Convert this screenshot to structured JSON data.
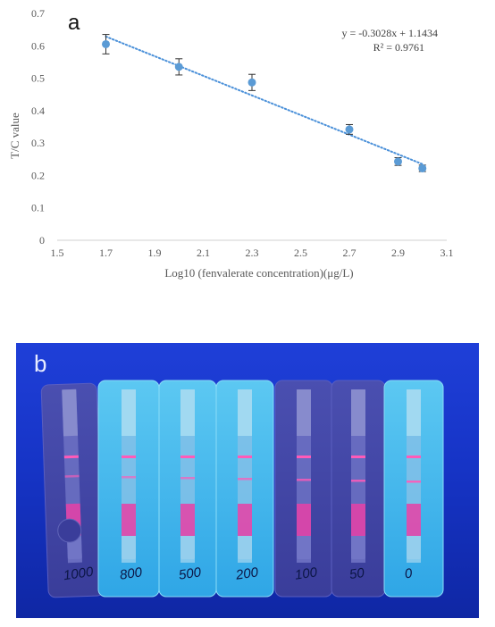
{
  "chart_data": {
    "type": "scatter",
    "panel_label": "a",
    "xlabel": "Log10 (fenvalerate concentration)(μg/L)",
    "ylabel": "T/C value",
    "xlim": [
      1.5,
      3.1
    ],
    "ylim": [
      0,
      0.7
    ],
    "xticks": [
      "1.5",
      "1.7",
      "1.9",
      "2.1",
      "2.3",
      "2.5",
      "2.7",
      "2.9",
      "3.1"
    ],
    "yticks": [
      "0",
      "0.1",
      "0.2",
      "0.3",
      "0.4",
      "0.5",
      "0.6",
      "0.7"
    ],
    "grid": false,
    "points": [
      {
        "x": 1.7,
        "y": 0.605,
        "err": 0.03
      },
      {
        "x": 2.0,
        "y": 0.535,
        "err": 0.025
      },
      {
        "x": 2.3,
        "y": 0.487,
        "err": 0.025
      },
      {
        "x": 2.7,
        "y": 0.342,
        "err": 0.015
      },
      {
        "x": 2.9,
        "y": 0.243,
        "err": 0.012
      },
      {
        "x": 3.0,
        "y": 0.222,
        "err": 0.01
      }
    ],
    "trendline": {
      "style": "dotted",
      "slope": -0.3028,
      "intercept": 1.1434,
      "equation": "y = -0.3028x + 1.1434",
      "r_squared": "R² = 0.9761"
    },
    "colors": {
      "marker": "#5b9bd5",
      "trendline": "#4a90d9",
      "axis": "#d0d0d0",
      "text": "#595959"
    }
  },
  "photo": {
    "panel_label": "b",
    "strip_labels": [
      "1000",
      "800",
      "500",
      "200",
      "100",
      "50",
      "0"
    ]
  }
}
